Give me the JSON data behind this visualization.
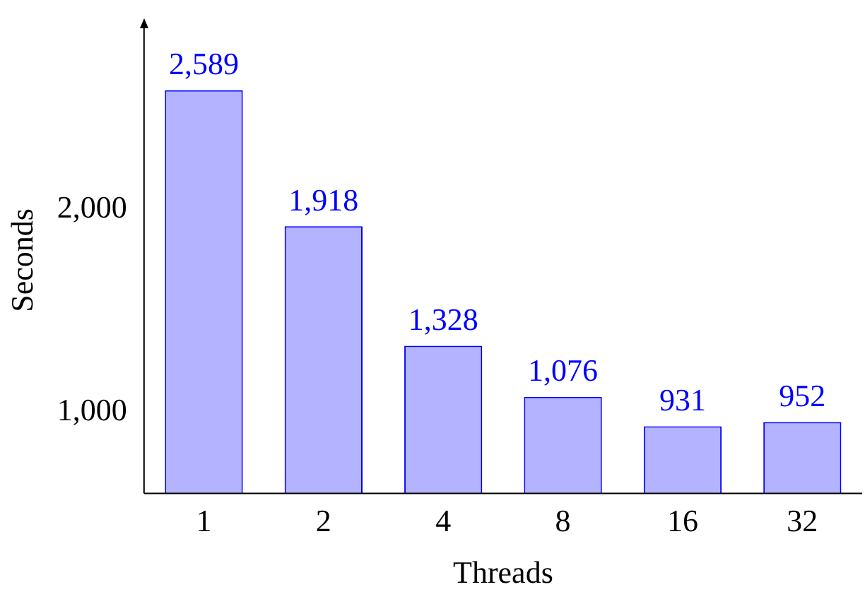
{
  "chart_data": {
    "type": "bar",
    "xlabel": "Threads",
    "ylabel": "Seconds",
    "categories": [
      "1",
      "2",
      "4",
      "8",
      "16",
      "32"
    ],
    "series": [
      {
        "color": "#b3b3ff",
        "values": [
          2589,
          1918,
          1328,
          1076,
          931,
          952
        ],
        "value_labels": [
          "2,589",
          "1,918",
          "1,328",
          "1,076",
          "931",
          "952"
        ]
      }
    ],
    "ylim": [
      600,
      2900
    ],
    "yticks": [
      {
        "value": 1000,
        "label": "1,000"
      },
      {
        "value": 2000,
        "label": "2,000"
      }
    ],
    "grid": false,
    "legend": false
  }
}
